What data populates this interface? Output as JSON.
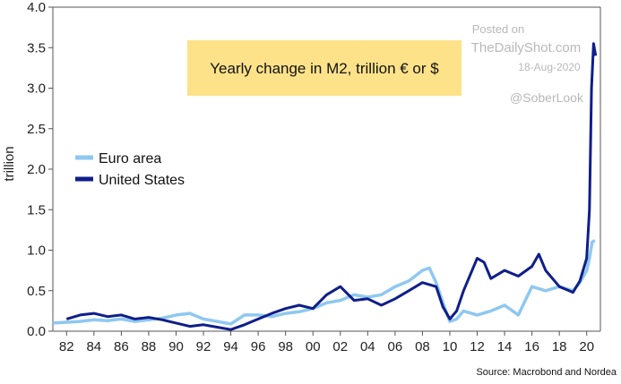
{
  "chart_data": {
    "type": "line",
    "title": "Yearly change in M2, trillion € or $",
    "ylabel": "trillion",
    "xlabel": "",
    "ylim": [
      0,
      4
    ],
    "xlim": [
      1981,
      2021
    ],
    "yticks": [
      "0.0",
      "0.5",
      "1.0",
      "1.5",
      "2.0",
      "2.5",
      "3.0",
      "3.5",
      "4.0"
    ],
    "xticks": [
      "82",
      "84",
      "86",
      "88",
      "90",
      "92",
      "94",
      "96",
      "98",
      "00",
      "02",
      "04",
      "06",
      "08",
      "10",
      "12",
      "14",
      "16",
      "18",
      "20"
    ],
    "grid": false,
    "legend_position": "center-left",
    "series": [
      {
        "name": "Euro area",
        "color": "#8ec8f0",
        "x": [
          1981,
          1982,
          1983,
          1984,
          1985,
          1986,
          1987,
          1988,
          1989,
          1990,
          1991,
          1992,
          1993,
          1994,
          1995,
          1996,
          1997,
          1998,
          1999,
          2000,
          2001,
          2002,
          2003,
          2004,
          2005,
          2006,
          2007,
          2008,
          2008.5,
          2009,
          2009.5,
          2010,
          2010.5,
          2011,
          2012,
          2013,
          2014,
          2015,
          2016,
          2017,
          2018,
          2019,
          2019.5,
          2020,
          2020.2,
          2020.4,
          2020.6
        ],
        "values": [
          0.1,
          0.11,
          0.12,
          0.14,
          0.13,
          0.15,
          0.12,
          0.14,
          0.16,
          0.2,
          0.22,
          0.15,
          0.12,
          0.09,
          0.2,
          0.2,
          0.18,
          0.22,
          0.24,
          0.28,
          0.35,
          0.38,
          0.45,
          0.42,
          0.45,
          0.55,
          0.62,
          0.75,
          0.78,
          0.6,
          0.35,
          0.12,
          0.15,
          0.25,
          0.2,
          0.25,
          0.32,
          0.2,
          0.55,
          0.5,
          0.55,
          0.5,
          0.6,
          0.75,
          0.9,
          1.1,
          1.12
        ]
      },
      {
        "name": "United States",
        "color": "#0f1e8a",
        "x": [
          1982,
          1983,
          1984,
          1985,
          1986,
          1987,
          1988,
          1989,
          1990,
          1991,
          1992,
          1993,
          1994,
          1995,
          1996,
          1997,
          1998,
          1999,
          2000,
          2001,
          2002,
          2003,
          2004,
          2005,
          2006,
          2007,
          2008,
          2009,
          2009.5,
          2010,
          2010.5,
          2011,
          2012,
          2012.5,
          2013,
          2014,
          2015,
          2016,
          2016.5,
          2017,
          2018,
          2019,
          2019.5,
          2020,
          2020.2,
          2020.35,
          2020.5,
          2020.65
        ],
        "values": [
          0.15,
          0.2,
          0.22,
          0.18,
          0.2,
          0.15,
          0.17,
          0.14,
          0.1,
          0.06,
          0.08,
          0.05,
          0.02,
          0.08,
          0.15,
          0.22,
          0.28,
          0.32,
          0.28,
          0.45,
          0.55,
          0.38,
          0.4,
          0.32,
          0.4,
          0.5,
          0.6,
          0.55,
          0.3,
          0.15,
          0.25,
          0.5,
          0.9,
          0.85,
          0.65,
          0.75,
          0.68,
          0.8,
          0.95,
          0.75,
          0.55,
          0.48,
          0.62,
          0.9,
          1.5,
          3.0,
          3.55,
          3.4
        ]
      }
    ]
  },
  "watermark": {
    "posted_on": "Posted on",
    "site": "TheDailyShot.com",
    "date": "18-Aug-2020",
    "handle": "@SoberLook"
  },
  "source": "Source: Macrobond and Nordea",
  "colors": {
    "title_box": "#fde28a",
    "axis": "#555555"
  }
}
